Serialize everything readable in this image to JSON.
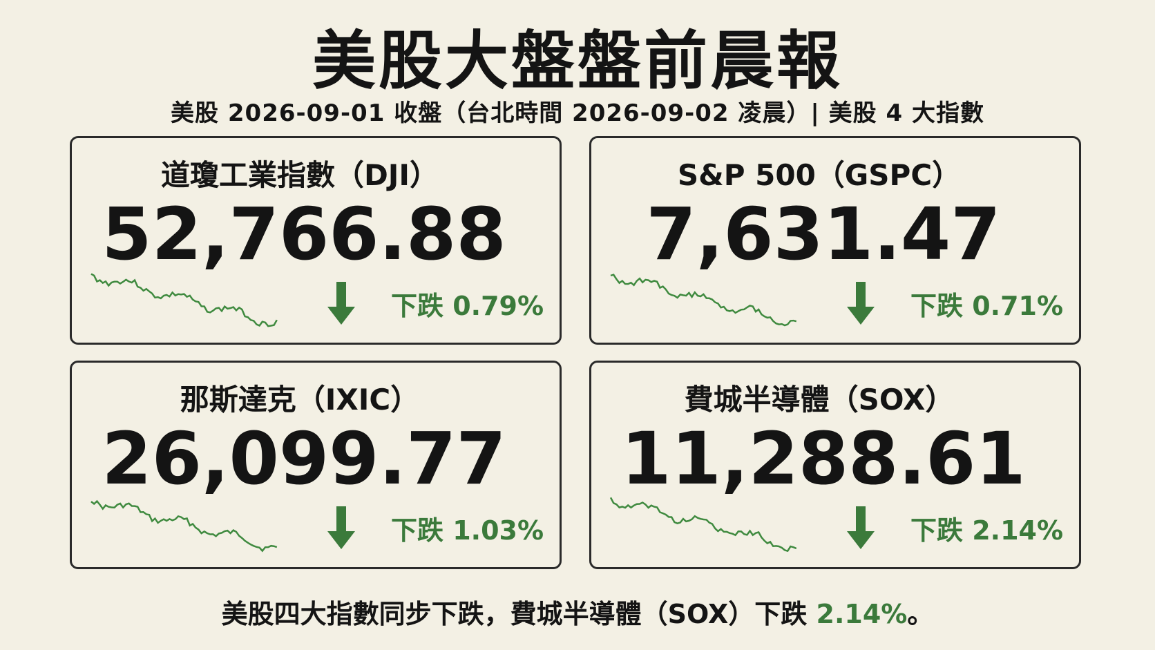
{
  "header": {
    "title": "美股大盤盤前晨報",
    "subtitle": "美股 2026-09-01 收盤（台北時間 2026-09-02 凌晨）| 美股 4 大指數"
  },
  "cards": [
    {
      "name": "道瓊工業指數（DJI）",
      "value": "52,766.88",
      "change": "下跌 0.79%"
    },
    {
      "name": "S&P 500（GSPC）",
      "value": "7,631.47",
      "change": "下跌 0.71%"
    },
    {
      "name": "那斯達克（IXIC）",
      "value": "26,099.77",
      "change": "下跌 1.03%"
    },
    {
      "name": "費城半導體（SOX）",
      "value": "11,288.61",
      "change": "下跌 2.14%"
    }
  ],
  "footer": {
    "text": "美股四大指數同步下跌，費城半導體（SOX）下跌 ",
    "highlight": "2.14%",
    "end": "。"
  }
}
